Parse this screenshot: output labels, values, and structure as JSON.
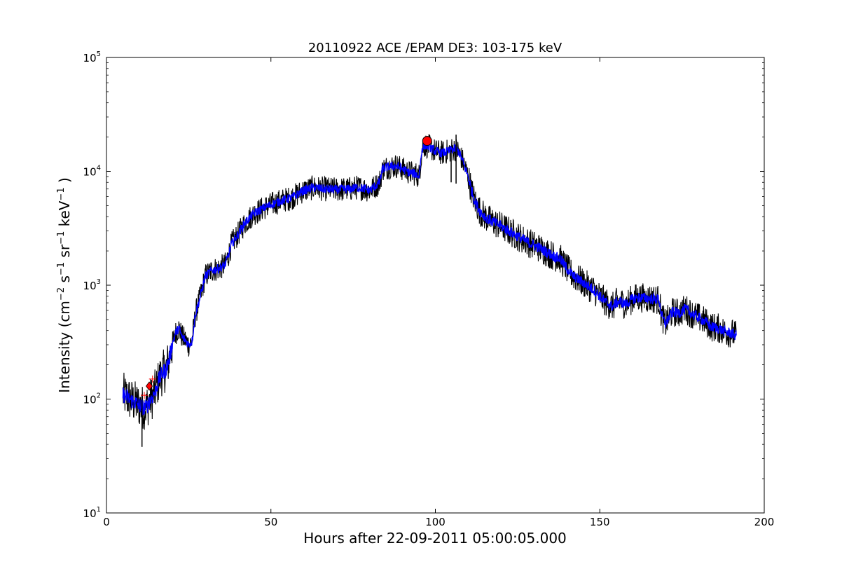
{
  "chart_data": {
    "type": "line",
    "title": "20110922 ACE /EPAM DE3: 103-175 keV",
    "xlabel": "Hours after 22-09-2011 05:00:05.000",
    "ylabel": {
      "prefix": "Intensity (cm",
      "parts": [
        {
          "sup": "−2",
          "text": " s"
        },
        {
          "sup": "−1",
          "text": " sr"
        },
        {
          "sup": "−1",
          "text": " keV"
        },
        {
          "sup": "−1",
          "text": " )"
        }
      ]
    },
    "xlim": [
      0,
      200
    ],
    "ylim": [
      10,
      100000
    ],
    "yscale": "log",
    "grid": false,
    "x_ticks": [
      {
        "value": 0,
        "label": "0"
      },
      {
        "value": 50,
        "label": "50"
      },
      {
        "value": 100,
        "label": "100"
      },
      {
        "value": 150,
        "label": "150"
      },
      {
        "value": 200,
        "label": "200"
      }
    ],
    "y_ticks": [
      {
        "value": 10,
        "base": "10",
        "exp": "1"
      },
      {
        "value": 100,
        "base": "10",
        "exp": "2"
      },
      {
        "value": 1000,
        "base": "10",
        "exp": "3"
      },
      {
        "value": 10000,
        "base": "10",
        "exp": "4"
      },
      {
        "value": 100000,
        "base": "10",
        "exp": "5"
      }
    ],
    "series": [
      {
        "color": "#000000",
        "x": [
          5,
          6,
          7,
          8,
          9,
          10,
          11,
          12,
          13,
          14,
          15,
          16,
          17,
          18,
          19,
          20,
          21,
          22,
          23,
          24,
          25,
          26,
          27,
          28,
          29,
          30,
          32,
          34,
          36,
          37,
          38,
          40,
          42,
          45,
          48,
          50,
          53,
          56,
          60,
          63,
          66,
          70,
          74,
          76,
          78,
          80,
          82,
          83,
          84,
          86,
          88,
          90,
          92,
          94,
          95,
          96,
          97,
          98,
          100,
          102,
          104,
          105,
          106,
          107,
          108,
          110,
          111,
          112,
          113,
          114,
          116,
          120,
          124,
          128,
          132,
          136,
          138,
          140,
          142,
          144,
          146,
          148,
          150,
          152,
          154,
          155,
          156,
          158,
          160,
          162,
          164,
          166,
          168,
          168.5,
          169,
          170,
          172,
          174,
          176,
          178,
          180,
          182,
          184,
          186,
          188,
          190,
          191.5
        ],
        "y": [
          110,
          105,
          100,
          95,
          92,
          88,
          85,
          84,
          95,
          105,
          120,
          150,
          170,
          180,
          220,
          300,
          380,
          420,
          350,
          330,
          300,
          320,
          550,
          700,
          900,
          1200,
          1350,
          1400,
          1500,
          1800,
          2300,
          2800,
          3500,
          4300,
          4800,
          5100,
          5500,
          5800,
          6800,
          7200,
          7000,
          6900,
          7000,
          7200,
          7100,
          6800,
          7500,
          8000,
          10500,
          11000,
          11200,
          10500,
          9800,
          9500,
          9000,
          16000,
          17000,
          16500,
          15000,
          14500,
          15000,
          15500,
          15800,
          15000,
          13000,
          9000,
          6800,
          5500,
          4800,
          4300,
          3800,
          3300,
          2800,
          2400,
          2100,
          1800,
          1700,
          1400,
          1200,
          1100,
          1000,
          920,
          800,
          700,
          650,
          700,
          720,
          680,
          760,
          780,
          770,
          760,
          750,
          600,
          520,
          460,
          580,
          570,
          620,
          560,
          520,
          480,
          430,
          420,
          390,
          380,
          360
        ]
      },
      {
        "color": "#0000ff",
        "x": [
          5,
          6,
          7,
          8,
          9,
          10,
          11,
          12,
          13,
          14,
          15,
          16,
          17,
          18,
          19,
          20,
          21,
          22,
          23,
          24,
          25,
          26,
          27,
          28,
          29,
          30,
          32,
          34,
          36,
          37,
          38,
          40,
          42,
          45,
          48,
          50,
          53,
          56,
          60,
          63,
          66,
          70,
          74,
          76,
          78,
          80,
          82,
          83,
          84,
          86,
          88,
          90,
          92,
          94,
          95,
          96,
          97,
          98,
          100,
          102,
          104,
          105,
          106,
          107,
          108,
          110,
          111,
          112,
          113,
          114,
          116,
          120,
          124,
          128,
          132,
          136,
          138,
          140,
          142,
          144,
          146,
          148,
          150,
          152,
          154,
          155,
          156,
          158,
          160,
          162,
          164,
          166,
          168,
          168.5,
          169,
          170,
          172,
          174,
          176,
          178,
          180,
          182,
          184,
          186,
          188,
          190,
          191.5
        ],
        "y": [
          110,
          105,
          100,
          95,
          92,
          88,
          85,
          84,
          95,
          105,
          120,
          150,
          170,
          180,
          220,
          300,
          380,
          420,
          350,
          330,
          300,
          320,
          550,
          700,
          900,
          1200,
          1350,
          1400,
          1500,
          1800,
          2300,
          2800,
          3500,
          4300,
          4800,
          5100,
          5500,
          5800,
          6800,
          7200,
          7000,
          6900,
          7000,
          7200,
          7100,
          6800,
          7500,
          8000,
          10500,
          11000,
          11200,
          10500,
          9800,
          9500,
          9000,
          16000,
          17000,
          16500,
          15000,
          14500,
          15000,
          15500,
          15800,
          15000,
          13000,
          9000,
          6800,
          5500,
          4800,
          4300,
          3800,
          3300,
          2800,
          2400,
          2100,
          1800,
          1700,
          1400,
          1200,
          1100,
          1000,
          920,
          800,
          700,
          650,
          700,
          720,
          680,
          760,
          780,
          770,
          760,
          750,
          600,
          520,
          460,
          580,
          570,
          620,
          560,
          520,
          480,
          430,
          420,
          390,
          380,
          360
        ]
      }
    ],
    "spikes": [
      {
        "x": 10.8,
        "y_min": 38,
        "y_max": 110,
        "color": "#000000"
      },
      {
        "x": 106.3,
        "y_min": 7800,
        "y_max": 21000,
        "color": "#000000"
      },
      {
        "x": 104.8,
        "y_min": 8000,
        "y_max": 15500,
        "color": "#000000"
      }
    ],
    "markers": [
      {
        "shape": "circle",
        "x": 97.5,
        "y": 18500,
        "color": "#ff0000"
      },
      {
        "shape": "diamond",
        "x": 13,
        "y": 130,
        "color": "#ff0000"
      },
      {
        "shape": "plus",
        "x": 11.5,
        "y": 108,
        "color": "#ff0000"
      },
      {
        "shape": "plus",
        "x": 14,
        "y": 150,
        "color": "#ff0000"
      }
    ]
  }
}
